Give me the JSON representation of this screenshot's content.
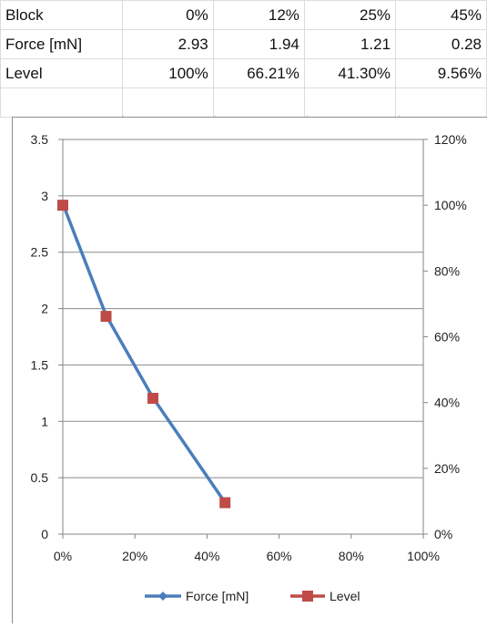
{
  "table": {
    "rows": [
      {
        "label": "Block",
        "values": [
          "0%",
          "12%",
          "25%",
          "45%"
        ]
      },
      {
        "label": "Force [mN]",
        "values": [
          "2.93",
          "1.94",
          "1.21",
          "0.28"
        ]
      },
      {
        "label": "Level",
        "values": [
          "100%",
          "66.21%",
          "41.30%",
          "9.56%"
        ]
      }
    ]
  },
  "chart_data": {
    "type": "line",
    "x": [
      0,
      12,
      25,
      45
    ],
    "x_ticks": [
      "0%",
      "20%",
      "40%",
      "60%",
      "80%",
      "100%"
    ],
    "xlim": [
      0,
      100
    ],
    "y_left_ticks": [
      "0",
      "0.5",
      "1",
      "1.5",
      "2",
      "2.5",
      "3",
      "3.5"
    ],
    "ylim_left": [
      0,
      3.5
    ],
    "y_right_ticks": [
      "0%",
      "20%",
      "40%",
      "60%",
      "80%",
      "100%",
      "120%"
    ],
    "ylim_right": [
      0,
      120
    ],
    "grid": true,
    "legend_position": "bottom",
    "series": [
      {
        "name": "Force [mN]",
        "axis": "left",
        "marker": "diamond",
        "color": "#4a7ebb",
        "values": [
          2.93,
          1.94,
          1.21,
          0.28
        ]
      },
      {
        "name": "Level",
        "axis": "right",
        "marker": "square",
        "color": "#be4b48",
        "values": [
          100,
          66.21,
          41.3,
          9.56
        ]
      }
    ]
  }
}
